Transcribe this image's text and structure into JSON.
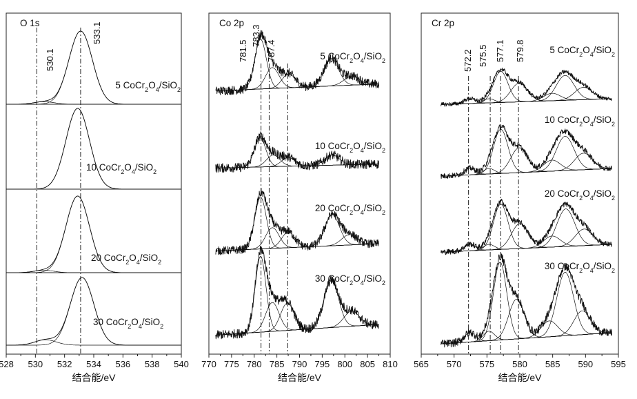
{
  "colors": {
    "line": "#111111",
    "frame": "#222222",
    "background": "#ffffff"
  },
  "chart_data": [
    {
      "type": "line",
      "title": "O 1s",
      "xlabel": "结合能/eV",
      "xlim": [
        528,
        540
      ],
      "x_ticks": [
        "528",
        "530",
        "532",
        "534",
        "536",
        "538",
        "540"
      ],
      "reference_lines": [
        {
          "label": "530.1",
          "value": 530.1
        },
        {
          "label": "533.1",
          "value": 533.1
        }
      ],
      "series": [
        {
          "name": "5 CoCr2O4/SiO2",
          "label_parts": [
            "5 CoCr",
            "2",
            "O",
            "4",
            "/SiO",
            "2"
          ],
          "components": [
            {
              "center": 533.1,
              "amplitude": 1.0,
              "fwhm": 1.9
            },
            {
              "center": 530.6,
              "amplitude": 0.035,
              "fwhm": 1.6
            }
          ]
        },
        {
          "name": "10 CoCr2O4/SiO2",
          "label_parts": [
            "10 CoCr",
            "2",
            "O",
            "4",
            "/SiO",
            "2"
          ],
          "components": [
            {
              "center": 532.9,
              "amplitude": 1.0,
              "fwhm": 1.9
            }
          ]
        },
        {
          "name": "20 CoCr2O4/SiO2",
          "label_parts": [
            "20 CoCr",
            "2",
            "O",
            "4",
            "/SiO",
            "2"
          ],
          "components": [
            {
              "center": 532.9,
              "amplitude": 1.0,
              "fwhm": 1.9
            },
            {
              "center": 530.6,
              "amplitude": 0.03,
              "fwhm": 1.6
            }
          ]
        },
        {
          "name": "30 CoCr2O4/SiO2",
          "label_parts": [
            "30 CoCr",
            "2",
            "O",
            "4",
            "/SiO",
            "2"
          ],
          "components": [
            {
              "center": 533.2,
              "amplitude": 1.0,
              "fwhm": 1.9
            },
            {
              "center": 530.7,
              "amplitude": 0.08,
              "fwhm": 1.7
            }
          ]
        }
      ]
    },
    {
      "type": "line",
      "title": "Co 2p",
      "xlabel": "结合能/eV",
      "xlim": [
        770,
        810
      ],
      "x_ticks": [
        "770",
        "775",
        "780",
        "785",
        "790",
        "795",
        "800",
        "805",
        "810"
      ],
      "reference_lines": [
        {
          "label": "781.5",
          "value": 781.5
        },
        {
          "label": "783.3",
          "value": 783.3
        },
        {
          "label": "787.4",
          "value": 787.4
        }
      ],
      "series": [
        {
          "name": "5 CoCr2O4/SiO2",
          "label_parts": [
            "5 CoCr",
            "2",
            "O",
            "4",
            "/SiO",
            "2"
          ],
          "components": [
            {
              "center": 781.4,
              "amplitude": 1.0,
              "fwhm": 3.0
            },
            {
              "center": 784.0,
              "amplitude": 0.42,
              "fwhm": 3.5
            },
            {
              "center": 787.6,
              "amplitude": 0.28,
              "fwhm": 3.5
            },
            {
              "center": 797.0,
              "amplitude": 0.55,
              "fwhm": 3.8
            },
            {
              "center": 801.5,
              "amplitude": 0.18,
              "fwhm": 4.0
            }
          ]
        },
        {
          "name": "10 CoCr2O4/SiO2",
          "label_parts": [
            "10 CoCr",
            "2",
            "O",
            "4",
            "/SiO",
            "2"
          ],
          "components": [
            {
              "center": 781.3,
              "amplitude": 1.0,
              "fwhm": 3.0
            },
            {
              "center": 784.2,
              "amplitude": 0.4,
              "fwhm": 3.5
            },
            {
              "center": 787.5,
              "amplitude": 0.3,
              "fwhm": 3.5
            },
            {
              "center": 797.2,
              "amplitude": 0.35,
              "fwhm": 3.8
            }
          ]
        },
        {
          "name": "20 CoCr2O4/SiO2",
          "label_parts": [
            "20 CoCr",
            "2",
            "O",
            "4",
            "/SiO",
            "2"
          ],
          "components": [
            {
              "center": 781.4,
              "amplitude": 1.0,
              "fwhm": 3.0
            },
            {
              "center": 784.0,
              "amplitude": 0.4,
              "fwhm": 3.5
            },
            {
              "center": 787.5,
              "amplitude": 0.3,
              "fwhm": 3.5
            },
            {
              "center": 797.2,
              "amplitude": 0.6,
              "fwhm": 3.8
            },
            {
              "center": 801.0,
              "amplitude": 0.2,
              "fwhm": 4.0
            }
          ]
        },
        {
          "name": "30 CoCr2O4/SiO2",
          "label_parts": [
            "30 CoCr",
            "2",
            "O",
            "4",
            "/SiO",
            "2"
          ],
          "components": [
            {
              "center": 781.4,
              "amplitude": 1.0,
              "fwhm": 2.8
            },
            {
              "center": 784.0,
              "amplitude": 0.38,
              "fwhm": 3.5
            },
            {
              "center": 787.3,
              "amplitude": 0.36,
              "fwhm": 3.5
            },
            {
              "center": 797.0,
              "amplitude": 0.62,
              "fwhm": 3.8
            },
            {
              "center": 801.5,
              "amplitude": 0.2,
              "fwhm": 4.0
            }
          ]
        }
      ]
    },
    {
      "type": "line",
      "title": "Cr 2p",
      "xlabel": "结合能/eV",
      "xlim": [
        565,
        595
      ],
      "x_ticks": [
        "565",
        "570",
        "575",
        "580",
        "585",
        "590",
        "595"
      ],
      "reference_lines": [
        {
          "label": "572.2",
          "value": 572.2
        },
        {
          "label": "575.5",
          "value": 575.5
        },
        {
          "label": "577.1",
          "value": 577.1
        },
        {
          "label": "579.8",
          "value": 579.8
        }
      ],
      "series": [
        {
          "name": "5 CoCr2O4/SiO2",
          "label_parts": [
            "5 CoCr",
            "2",
            "O",
            "4",
            "/SiO",
            "2"
          ],
          "components": [
            {
              "center": 572.4,
              "amplitude": 0.12,
              "fwhm": 2.0
            },
            {
              "center": 575.3,
              "amplitude": 0.1,
              "fwhm": 2.0
            },
            {
              "center": 577.1,
              "amplitude": 0.75,
              "fwhm": 2.6
            },
            {
              "center": 579.9,
              "amplitude": 0.45,
              "fwhm": 3.0
            },
            {
              "center": 584.9,
              "amplitude": 0.18,
              "fwhm": 3.0
            },
            {
              "center": 586.9,
              "amplitude": 0.6,
              "fwhm": 3.2
            },
            {
              "center": 589.7,
              "amplitude": 0.3,
              "fwhm": 3.2
            }
          ]
        },
        {
          "name": "10 CoCr2O4/SiO2",
          "label_parts": [
            "10 CoCr",
            "2",
            "O",
            "4",
            "/SiO",
            "2"
          ],
          "components": [
            {
              "center": 572.4,
              "amplitude": 0.12,
              "fwhm": 2.0
            },
            {
              "center": 575.3,
              "amplitude": 0.1,
              "fwhm": 2.0
            },
            {
              "center": 577.1,
              "amplitude": 0.8,
              "fwhm": 2.6
            },
            {
              "center": 579.9,
              "amplitude": 0.45,
              "fwhm": 3.0
            },
            {
              "center": 584.9,
              "amplitude": 0.2,
              "fwhm": 3.0
            },
            {
              "center": 586.9,
              "amplitude": 0.62,
              "fwhm": 3.2
            },
            {
              "center": 589.7,
              "amplitude": 0.3,
              "fwhm": 3.2
            }
          ]
        },
        {
          "name": "20 CoCr2O4/SiO2",
          "label_parts": [
            "20 CoCr",
            "2",
            "O",
            "4",
            "/SiO",
            "2"
          ],
          "components": [
            {
              "center": 572.4,
              "amplitude": 0.12,
              "fwhm": 2.0
            },
            {
              "center": 575.3,
              "amplitude": 0.1,
              "fwhm": 2.0
            },
            {
              "center": 577.1,
              "amplitude": 0.82,
              "fwhm": 2.6
            },
            {
              "center": 580.0,
              "amplitude": 0.45,
              "fwhm": 3.0
            },
            {
              "center": 584.9,
              "amplitude": 0.2,
              "fwhm": 3.0
            },
            {
              "center": 587.0,
              "amplitude": 0.68,
              "fwhm": 3.2
            },
            {
              "center": 589.8,
              "amplitude": 0.3,
              "fwhm": 3.2
            }
          ]
        },
        {
          "name": "30 CoCr2O4/SiO2",
          "label_parts": [
            "30 CoCr",
            "2",
            "O",
            "4",
            "/SiO",
            "2"
          ],
          "components": [
            {
              "center": 572.4,
              "amplitude": 0.12,
              "fwhm": 2.0
            },
            {
              "center": 575.3,
              "amplitude": 0.12,
              "fwhm": 2.0
            },
            {
              "center": 577.0,
              "amplitude": 0.98,
              "fwhm": 2.4
            },
            {
              "center": 579.5,
              "amplitude": 0.5,
              "fwhm": 2.8
            },
            {
              "center": 584.5,
              "amplitude": 0.2,
              "fwhm": 3.0
            },
            {
              "center": 586.9,
              "amplitude": 0.8,
              "fwhm": 3.0
            },
            {
              "center": 589.5,
              "amplitude": 0.3,
              "fwhm": 3.0
            }
          ]
        }
      ]
    }
  ]
}
